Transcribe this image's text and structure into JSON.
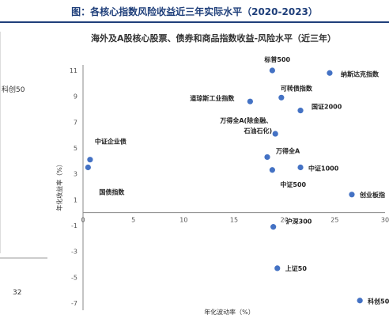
{
  "figure_title": "图：各核心指数风险收益近三年实际水平（2020-2023）",
  "left_fragment": {
    "text_top": "科创50",
    "text_bottom": "32"
  },
  "chart_data": {
    "type": "scatter",
    "title": "海外及A股核心股票、债券和商品指数收益-风险水平（近三年）",
    "xlabel": "年化波动率（%）",
    "ylabel": "年化收益率（%）",
    "xlim": [
      0,
      30
    ],
    "ylim": [
      -7,
      11
    ],
    "xticks": [
      0,
      5,
      10,
      15,
      20,
      25,
      30
    ],
    "yticks": [
      11,
      9,
      7,
      5,
      3,
      1,
      -1,
      -3,
      -5,
      -7
    ],
    "grid": false,
    "points": [
      {
        "label": "标普500",
        "x": 18.8,
        "y": 11.0
      },
      {
        "label": "纳斯达克指数",
        "x": 24.5,
        "y": 10.8
      },
      {
        "label": "道琼斯工业指数",
        "x": 16.6,
        "y": 8.6
      },
      {
        "label": "可转债指数",
        "x": 19.7,
        "y": 8.9
      },
      {
        "label": "国证2000",
        "x": 21.6,
        "y": 7.9
      },
      {
        "label": "万得全A(除金融、石油石化)",
        "x": 19.1,
        "y": 6.1
      },
      {
        "label": "中证企业债",
        "x": 0.7,
        "y": 4.1
      },
      {
        "label": "国债指数",
        "x": 0.5,
        "y": 3.5
      },
      {
        "label": "万得全A",
        "x": 18.3,
        "y": 4.3
      },
      {
        "label": "中证1000",
        "x": 21.6,
        "y": 3.5
      },
      {
        "label": "中证500",
        "x": 18.8,
        "y": 3.3
      },
      {
        "label": "创业板指",
        "x": 26.7,
        "y": 1.4
      },
      {
        "label": "沪深300",
        "x": 18.9,
        "y": -1.1
      },
      {
        "label": "上证50",
        "x": 19.3,
        "y": -4.3
      },
      {
        "label": "科创50",
        "x": 27.5,
        "y": -6.8
      }
    ],
    "marker_color": "#4472c4",
    "text_color": "#1f3f7a"
  }
}
